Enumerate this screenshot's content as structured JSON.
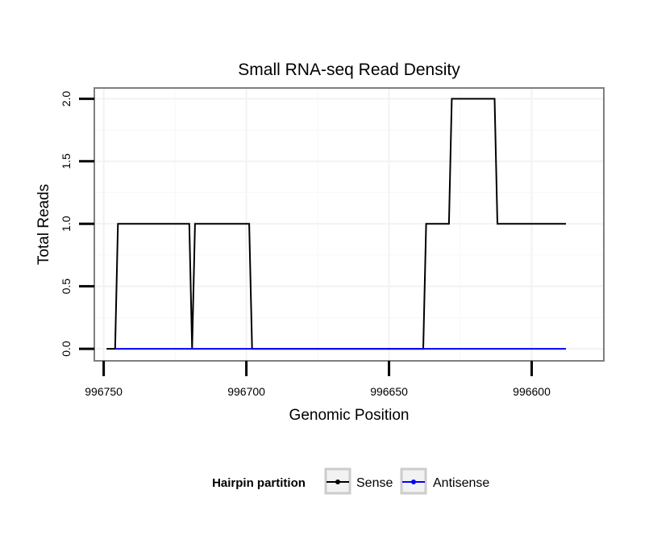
{
  "chart_data": {
    "type": "line",
    "title": "Small RNA-seq Read Density",
    "xlabel": "Genomic Position",
    "ylabel": "Total Reads",
    "x_reversed": true,
    "xlim": [
      996753,
      996575
    ],
    "ylim": [
      -0.09,
      2.08
    ],
    "x_ticks": [
      996750,
      996700,
      996650,
      996600
    ],
    "x_tick_labels": [
      "996750",
      "996700",
      "996650",
      "996600"
    ],
    "y_ticks": [
      0.0,
      0.5,
      1.0,
      1.5,
      2.0
    ],
    "y_tick_labels": [
      "0.0",
      "0.5",
      "1.0",
      "1.5",
      "2.0"
    ],
    "grid": true,
    "legend": {
      "title": "Hairpin partition",
      "position": "bottom",
      "entries": [
        {
          "name": "Sense",
          "color": "#000000"
        },
        {
          "name": "Antisense",
          "color": "#0000ff"
        }
      ]
    },
    "series": [
      {
        "name": "Sense",
        "color": "#000000",
        "x": [
          996749,
          996746,
          996745,
          996720,
          996719,
          996718,
          996699,
          996698,
          996638,
          996637,
          996629,
          996628,
          996613,
          996612,
          996597,
          996596,
          996588
        ],
        "y": [
          0,
          0,
          1,
          1,
          0,
          1,
          1,
          0,
          0,
          1,
          1,
          2,
          2,
          1,
          1,
          1,
          1
        ]
      },
      {
        "name": "Antisense",
        "color": "#0000ff",
        "x": [
          996746,
          996588
        ],
        "y": [
          0,
          0
        ]
      }
    ]
  }
}
